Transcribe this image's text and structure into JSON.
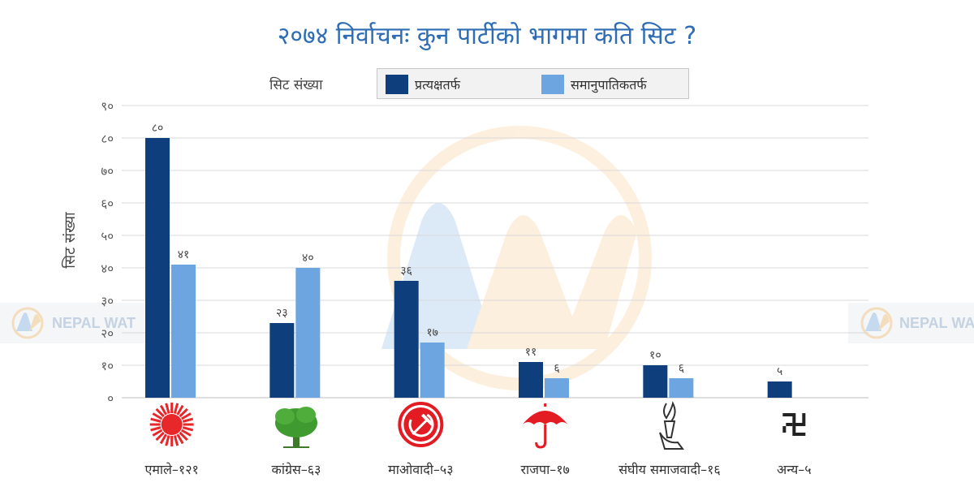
{
  "title": "२०७४ निर्वाचनः कुन पार्टीको भागमा कति सिट ?",
  "legend": {
    "title": "सिट संख्या",
    "items": [
      {
        "label": "प्रत्यक्षतर्फ",
        "color": "#0e3f7c"
      },
      {
        "label": "समानुपातिकतर्फ",
        "color": "#6ca5e0"
      }
    ]
  },
  "watermark": {
    "brand": "NEPAL WAT"
  },
  "chart_data": {
    "type": "bar",
    "title": "२०७४ निर्वाचनः कुन पार्टीको भागमा कति सिट ?",
    "ylabel": "सिट संख्या",
    "xlabel": "",
    "ylim": [
      0,
      90
    ],
    "yticks": [
      "०",
      "१०",
      "२०",
      "३०",
      "४०",
      "५०",
      "६०",
      "७०",
      "८०",
      "९०"
    ],
    "grid": true,
    "legend_position": "top",
    "categories": [
      "एमाले–१२१",
      "कांग्रेस–६३",
      "माओवादी–५३",
      "राजपा–१७",
      "संघीय  समाजवादी–१६",
      "अन्य–५"
    ],
    "symbols": [
      "sun-symbol",
      "tree-symbol",
      "hammer-sickle-symbol",
      "umbrella-symbol",
      "hand-torch-symbol",
      "swastika-symbol"
    ],
    "series": [
      {
        "name": "प्रत्यक्षतर्फ",
        "color": "#0e3f7c",
        "values": [
          80,
          23,
          36,
          11,
          10,
          5
        ],
        "labels": [
          "८०",
          "२३",
          "३६",
          "११",
          "१०",
          "५"
        ]
      },
      {
        "name": "समानुपातिकतर्फ",
        "color": "#6ca5e0",
        "values": [
          41,
          40,
          17,
          6,
          6,
          null
        ],
        "labels": [
          "४१",
          "४०",
          "१७",
          "६",
          "६",
          ""
        ]
      }
    ]
  }
}
